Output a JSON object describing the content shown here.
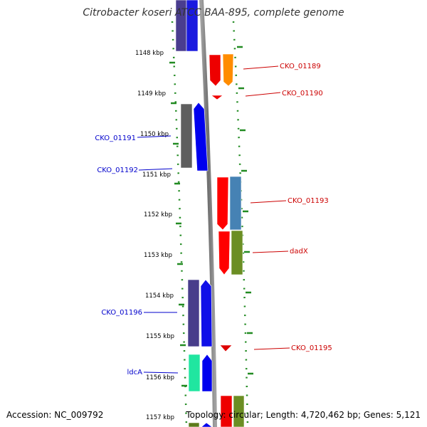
{
  "title": "Citrobacter koseri ATCC BAA-895, complete genome",
  "accession": "Accession: NC_009792",
  "summary": "Topology: circular; Length: 4,720,462 bp; Genes: 5,121",
  "colors": {
    "backbone": "#808080",
    "tick": "#228B22",
    "forward_label": "#0000CC",
    "reverse_label": "#CC0000"
  },
  "ruler": [
    {
      "label": "1148 kbp"
    },
    {
      "label": "1149 kbp"
    },
    {
      "label": "1150 kbp"
    },
    {
      "label": "1151 kbp"
    },
    {
      "label": "1152 kbp"
    },
    {
      "label": "1153 kbp"
    },
    {
      "label": "1154 kbp"
    },
    {
      "label": "1155 kbp"
    },
    {
      "label": "1156 kbp"
    },
    {
      "label": "1157 kbp"
    }
  ],
  "gene_labels": [
    {
      "name": "CKO_01189",
      "strand": "reverse"
    },
    {
      "name": "CKO_01190",
      "strand": "reverse"
    },
    {
      "name": "CKO_01191",
      "strand": "forward"
    },
    {
      "name": "CKO_01192",
      "strand": "forward"
    },
    {
      "name": "CKO_01193",
      "strand": "reverse"
    },
    {
      "name": "dadX",
      "strand": "reverse"
    },
    {
      "name": "CKO_01196",
      "strand": "forward"
    },
    {
      "name": "CKO_01195",
      "strand": "reverse"
    },
    {
      "name": "ldcA",
      "strand": "forward"
    }
  ]
}
